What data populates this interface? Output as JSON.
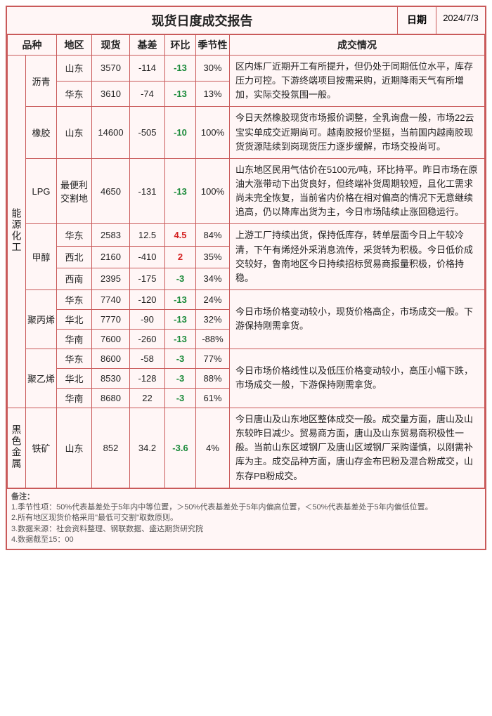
{
  "title": "现货日度成交报告",
  "date_label": "日期",
  "date_value": "2024/7/3",
  "headers": {
    "category": "品种",
    "region": "地区",
    "spot": "现货",
    "basis": "基差",
    "mom": "环比",
    "season": "季节性",
    "note": "成交情况"
  },
  "cat_energy": "能源化工",
  "cat_black": "黑色金属",
  "rows": {
    "bitumen": {
      "name": "沥青",
      "r0": {
        "region": "山东",
        "spot": "3570",
        "basis": "-114",
        "mom": "-13",
        "mom_cls": "neg",
        "season": "30%"
      },
      "r1": {
        "region": "华东",
        "spot": "3610",
        "basis": "-74",
        "mom": "-13",
        "mom_cls": "neg",
        "season": "13%"
      },
      "note": "区内炼厂近期开工有所提升，但仍处于同期低位水平，库存压力可控。下游终端项目按需采购，近期降雨天气有所增加，实际交投氛围一般。"
    },
    "rubber": {
      "name": "橡胶",
      "r0": {
        "region": "山东",
        "spot": "14600",
        "basis": "-505",
        "mom": "-10",
        "mom_cls": "neg",
        "season": "100%"
      },
      "note": "今日天然橡胶现货市场报价调整，全乳询盘一般，市场22云宝实单成交近期尚可。越南胶报价坚挺，当前国内越南胶现货货源陆续到岗现货压力逐步缓解，市场交投尚可。"
    },
    "lpg": {
      "name": "LPG",
      "r0": {
        "region": "最便利交割地",
        "spot": "4650",
        "basis": "-131",
        "mom": "-13",
        "mom_cls": "neg",
        "season": "100%"
      },
      "note": "山东地区民用气估价在5100元/吨，环比持平。昨日市场在原油大涨带动下出货良好，但终端补货周期较短，且化工需求尚未完全恢复，当前省内价格在相对偏高的情况下无意继续追高，仍以降库出货为主，今日市场陆续止涨回稳运行。"
    },
    "methanol": {
      "name": "甲醇",
      "r0": {
        "region": "华东",
        "spot": "2583",
        "basis": "12.5",
        "mom": "4.5",
        "mom_cls": "pos",
        "season": "84%"
      },
      "r1": {
        "region": "西北",
        "spot": "2160",
        "basis": "-410",
        "mom": "2",
        "mom_cls": "pos",
        "season": "35%"
      },
      "r2": {
        "region": "西南",
        "spot": "2395",
        "basis": "-175",
        "mom": "-3",
        "mom_cls": "neg",
        "season": "34%"
      },
      "note": "上游工厂持续出货，保持低库存，转单层面今日上午较冷清，下午有烯烃外采消息流传，采货转为积极。今日低价成交较好，鲁南地区今日持续招标贸易商报量积极，价格持稳。"
    },
    "pp": {
      "name": "聚丙烯",
      "r0": {
        "region": "华东",
        "spot": "7740",
        "basis": "-120",
        "mom": "-13",
        "mom_cls": "neg",
        "season": "24%"
      },
      "r1": {
        "region": "华北",
        "spot": "7770",
        "basis": "-90",
        "mom": "-13",
        "mom_cls": "neg",
        "season": "32%"
      },
      "r2": {
        "region": "华南",
        "spot": "7600",
        "basis": "-260",
        "mom": "-13",
        "mom_cls": "neg",
        "season": "-88%"
      },
      "note": "今日市场价格变动较小，现货价格高企，市场成交一般。下游保持刚需拿货。"
    },
    "pe": {
      "name": "聚乙烯",
      "r0": {
        "region": "华东",
        "spot": "8600",
        "basis": "-58",
        "mom": "-3",
        "mom_cls": "neg",
        "season": "77%"
      },
      "r1": {
        "region": "华北",
        "spot": "8530",
        "basis": "-128",
        "mom": "-3",
        "mom_cls": "neg",
        "season": "88%"
      },
      "r2": {
        "region": "华南",
        "spot": "8680",
        "basis": "22",
        "mom": "-3",
        "mom_cls": "neg",
        "season": "61%"
      },
      "note": "今日市场价格线性以及低压价格变动较小，高压小幅下跌，市场成交一般，下游保持刚需拿货。"
    },
    "iron": {
      "name": "铁矿",
      "r0": {
        "region": "山东",
        "spot": "852",
        "basis": "34.2",
        "mom": "-3.6",
        "mom_cls": "neg",
        "season": "4%"
      },
      "note": "今日唐山及山东地区整体成交一般。成交量方面，唐山及山东较昨日减少。贸易商方面，唐山及山东贸易商积极性一般。当前山东区域钢厂及唐山区域钢厂采购谨慎，以刚需补库为主。成交品种方面，唐山存金布巴粉及混合粉成交，山东存PB粉成交。"
    }
  },
  "footer": {
    "title": "备注：",
    "l1": "1.季节性项：50%代表基差处于5年内中等位置，＞50%代表基差处于5年内偏高位置，＜50%代表基差处于5年内偏低位置。",
    "l2": "2.所有地区现货价格采用\"最低可交割\"取数原则。",
    "l3": "3.数据来源：社会资料整理、钢联数据、盛达期货研究院",
    "l4": "4.数据截至15：00"
  }
}
